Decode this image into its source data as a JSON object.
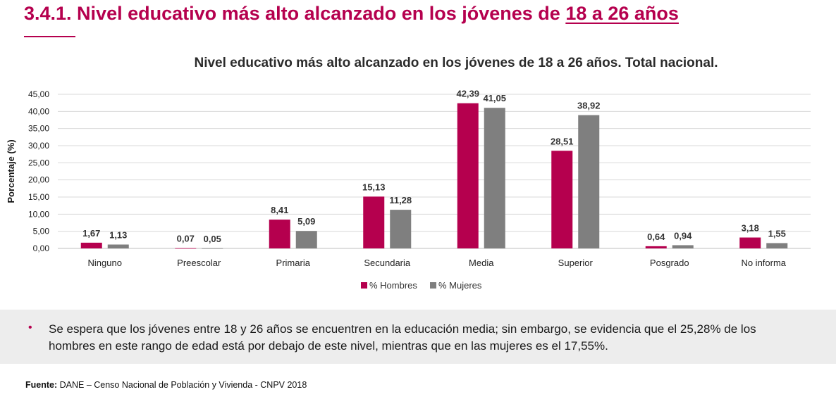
{
  "page": {
    "title": "3.4.1. Nivel educativo más alto alcanzado en los jóvenes de",
    "title_underlined": "18 a 26 años",
    "accent_color": "#b5004e"
  },
  "chart_data": {
    "type": "bar",
    "title": "Nivel educativo más alto alcanzado en los jóvenes de 18 a 26 años. Total nacional.",
    "ylabel": "Porcentaje (%)",
    "xlabel": "",
    "ylim": [
      0,
      45
    ],
    "yticks": [
      "0,00",
      "5,00",
      "10,00",
      "15,00",
      "20,00",
      "25,00",
      "30,00",
      "35,00",
      "40,00",
      "45,00"
    ],
    "grid": true,
    "legend_position": "bottom",
    "categories": [
      "Ninguno",
      "Preescolar",
      "Primaria",
      "Secundaria",
      "Media",
      "Superior",
      "Posgrado",
      "No informa"
    ],
    "series": [
      {
        "name": "% Hombres",
        "color": "#b5004e",
        "values": [
          1.67,
          0.07,
          8.41,
          15.13,
          42.39,
          28.51,
          0.64,
          3.18
        ],
        "labels": [
          "1,67",
          "0,07",
          "8,41",
          "15,13",
          "42,39",
          "28,51",
          "0,64",
          "3,18"
        ]
      },
      {
        "name": "% Mujeres",
        "color": "#7f7f7f",
        "values": [
          1.13,
          0.05,
          5.09,
          11.28,
          41.05,
          38.92,
          0.94,
          1.55
        ],
        "labels": [
          "1,13",
          "0,05",
          "5,09",
          "11,28",
          "41,05",
          "38,92",
          "0,94",
          "1,55"
        ]
      }
    ]
  },
  "note": {
    "bullet": "•",
    "text": "Se espera que los jóvenes entre 18 y 26 años se encuentren en la educación media; sin embargo, se evidencia que el 25,28% de los hombres en este rango de edad está por debajo de este nivel, mientras que en las mujeres es el 17,55%."
  },
  "source": {
    "label": "Fuente:",
    "text": " DANE – Censo Nacional de Población y Vivienda - CNPV 2018"
  }
}
